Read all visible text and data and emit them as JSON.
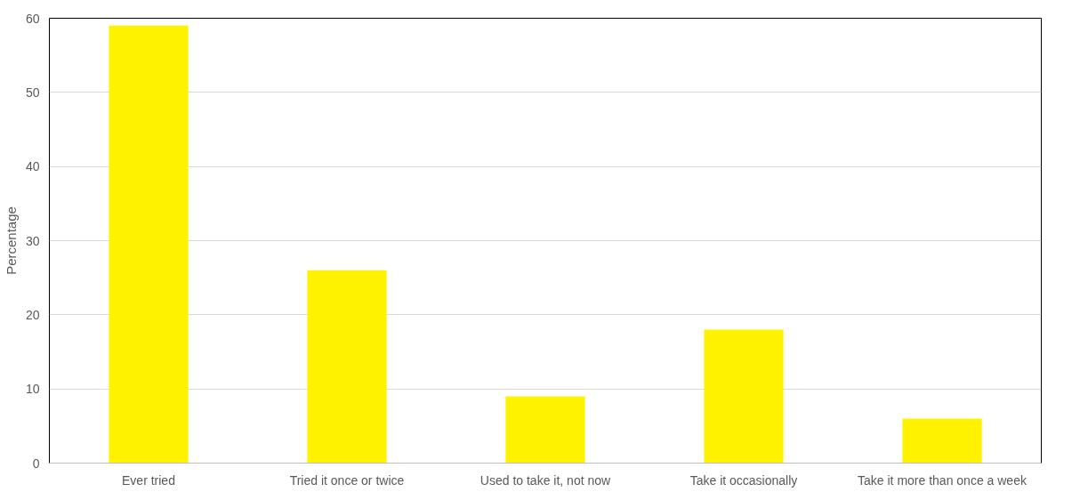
{
  "chart_data": {
    "type": "bar",
    "ylabel": "Percentage",
    "categories": [
      "Ever tried",
      "Tried it once or twice",
      "Used to take it, not now",
      "Take it occasionally",
      "Take it more than once a week"
    ],
    "values": [
      59,
      26,
      9,
      18,
      6
    ],
    "color": "#fff200",
    "ylim": [
      0,
      60
    ],
    "yticks": [
      0,
      10,
      20,
      30,
      40,
      50,
      60
    ],
    "grid": "y"
  }
}
